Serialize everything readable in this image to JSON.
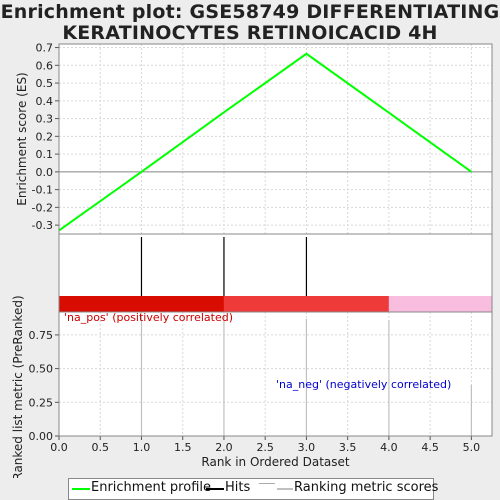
{
  "title_line1": "Enrichment plot: GSE58749 DIFFERENTIATING",
  "title_line2": "KERATINOCYTES RETINOICACID 4H",
  "chart_data": [
    {
      "type": "line",
      "ylabel": "Enrichment score (ES)",
      "ylim": [
        -0.35,
        0.72
      ],
      "yticks": [
        -0.3,
        -0.2,
        -0.1,
        0.0,
        0.1,
        0.2,
        0.3,
        0.4,
        0.5,
        0.6,
        0.7
      ],
      "ytick_labels": [
        "-0.3",
        "-0.2",
        "-0.1",
        "0.0",
        "0.1",
        "0.2",
        "0.3",
        "0.4",
        "0.5",
        "0.6",
        "0.7"
      ],
      "x": [
        0,
        1,
        2,
        3,
        4,
        5
      ],
      "series": [
        {
          "name": "Enrichment profile",
          "color": "#00ff00",
          "values": [
            -0.33,
            0.0,
            0.335,
            0.665,
            0.333,
            0.0
          ]
        }
      ],
      "grid": true
    },
    {
      "type": "hits",
      "hits_x": [
        1,
        2,
        3
      ],
      "color_bar": [
        {
          "from": 0,
          "to": 2,
          "color": "#d80c00"
        },
        {
          "from": 2,
          "to": 4,
          "color": "#ef3a3a"
        },
        {
          "from": 4,
          "to": 5.25,
          "color": "#f9bde0"
        }
      ]
    },
    {
      "type": "bar",
      "xlabel": "Rank in Ordered Dataset",
      "ylabel": "Ranked list metric (PreRanked)",
      "xlim": [
        0,
        5.25
      ],
      "ylim": [
        0,
        0.92
      ],
      "xticks": [
        0.0,
        0.5,
        1.0,
        1.5,
        2.0,
        2.5,
        3.0,
        3.5,
        4.0,
        4.5,
        5.0
      ],
      "xtick_labels": [
        "0.0",
        "0.5",
        "1.0",
        "1.5",
        "2.0",
        "2.5",
        "3.0",
        "3.5",
        "4.0",
        "4.5",
        "5.0"
      ],
      "yticks": [
        0.0,
        0.25,
        0.5,
        0.75
      ],
      "ytick_labels": [
        "0.00",
        "0.25",
        "0.50",
        "0.75"
      ],
      "x": [
        1,
        2,
        3,
        4,
        5
      ],
      "values": [
        0.9,
        0.9,
        0.87,
        0.86,
        0.38
      ],
      "pos_label": "'na_pos' (positively correlated)",
      "neg_label": "'na_neg' (negatively correlated)",
      "pos_color": "#cc0000",
      "neg_color": "#0000cc"
    }
  ],
  "legend": {
    "items": [
      {
        "label": "Enrichment profile",
        "color": "#00ff00"
      },
      {
        "label": "Hits",
        "color": "#000000"
      },
      {
        "label": "Ranking metric scores",
        "color": "#c0c0c0"
      }
    ]
  }
}
